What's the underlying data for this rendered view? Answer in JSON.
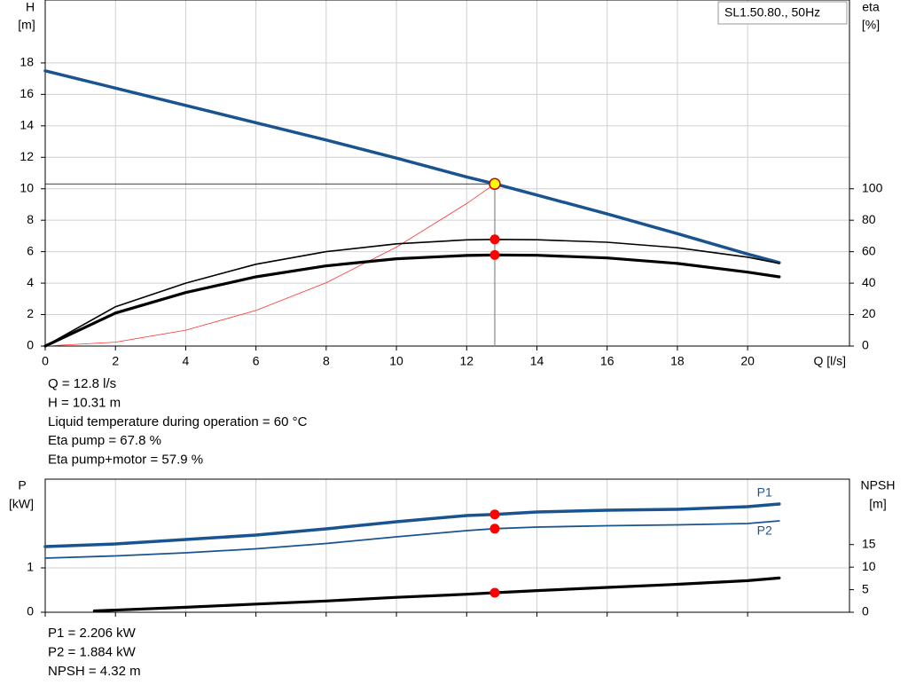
{
  "chart_data": [
    {
      "type": "line",
      "legend_title": "SL1.50.80., 50Hz",
      "ylabel": [
        "H",
        "[m]"
      ],
      "y2label": [
        "eta",
        "[%]"
      ],
      "xlabel": "Q [l/s]",
      "xlim": [
        0,
        22.9
      ],
      "xticks": [
        0,
        2,
        4,
        6,
        8,
        10,
        12,
        14,
        16,
        18,
        20
      ],
      "ylim": [
        0,
        22
      ],
      "yticks": [
        0,
        2,
        4,
        6,
        8,
        10,
        12,
        14,
        16,
        18
      ],
      "y2lim": [
        0,
        220
      ],
      "y2ticks": [
        0,
        20,
        40,
        60,
        80,
        100
      ],
      "grid": true,
      "series": [
        {
          "color": "#1a5490",
          "x": [
            0,
            2,
            4,
            6,
            8,
            10,
            12,
            12.8,
            14,
            16,
            18,
            20,
            20.9
          ],
          "values": [
            17.5,
            16.4,
            15.3,
            14.2,
            13.1,
            11.95,
            10.75,
            10.31,
            9.6,
            8.4,
            7.15,
            5.85,
            5.3
          ]
        },
        {
          "color": "#ff3030",
          "x": [
            0,
            2,
            4,
            6,
            8,
            10,
            12,
            12.8
          ],
          "values": [
            0,
            0.25,
            1.01,
            2.26,
            4.03,
            6.29,
            9.06,
            10.31
          ]
        },
        {
          "color": "#000000",
          "axis": "y2",
          "x": [
            0,
            2,
            4,
            6,
            8,
            10,
            12,
            12.8,
            14,
            16,
            18,
            20,
            20.9
          ],
          "values": [
            0,
            25,
            40,
            52,
            60,
            65,
            67.5,
            67.8,
            67.6,
            66,
            62.5,
            56.5,
            52.5
          ]
        },
        {
          "color": "#000000",
          "axis": "y2",
          "x": [
            0,
            2,
            4,
            6,
            8,
            10,
            12,
            12.8,
            14,
            16,
            18,
            20,
            20.9
          ],
          "values": [
            0,
            21,
            34,
            44,
            51,
            55.5,
            57.6,
            57.9,
            57.7,
            56,
            52.5,
            47,
            44
          ]
        }
      ],
      "notes": [
        "Q = 12.8 l/s",
        "H = 10.31 m",
        "Liquid temperature during operation = 60 °C",
        "Eta pump = 67.8 %",
        "Eta pump+motor = 57.9 %"
      ]
    },
    {
      "type": "line",
      "ylabel": [
        "P",
        "[kW]"
      ],
      "y2label": [
        "NPSH",
        "[m]"
      ],
      "xlim": [
        0,
        22.9
      ],
      "xticks": [
        0,
        2,
        4,
        6,
        8,
        10,
        12,
        14,
        16,
        18,
        20
      ],
      "ylim": [
        0,
        3
      ],
      "yticks": [
        0,
        1
      ],
      "y2lim": [
        0,
        29.5
      ],
      "y2ticks": [
        0,
        5,
        10,
        15
      ],
      "grid": true,
      "series": [
        {
          "name": "P1",
          "color": "#1a5490",
          "x": [
            0,
            2,
            4,
            6,
            8,
            10,
            12,
            12.8,
            14,
            16,
            18,
            20,
            20.9
          ],
          "values": [
            1.48,
            1.54,
            1.64,
            1.74,
            1.88,
            2.04,
            2.18,
            2.206,
            2.26,
            2.3,
            2.32,
            2.38,
            2.44
          ]
        },
        {
          "name": "P2",
          "color": "#1a5490",
          "x": [
            0,
            2,
            4,
            6,
            8,
            10,
            12,
            12.8,
            14,
            16,
            18,
            20,
            20.9
          ],
          "values": [
            1.22,
            1.27,
            1.34,
            1.43,
            1.55,
            1.7,
            1.84,
            1.884,
            1.92,
            1.95,
            1.97,
            2.0,
            2.06
          ]
        },
        {
          "color": "#000000",
          "axis": "y2",
          "x": [
            1.4,
            4,
            6,
            8,
            10,
            12,
            12.8,
            14,
            16,
            18,
            20,
            20.9
          ],
          "values": [
            0.3,
            1.1,
            1.8,
            2.5,
            3.3,
            4.0,
            4.32,
            4.8,
            5.5,
            6.2,
            7.0,
            7.6
          ]
        }
      ],
      "notes": [
        "P1 = 2.206 kW",
        "P2 = 1.884 kW",
        "NPSH = 4.32 m"
      ]
    }
  ]
}
